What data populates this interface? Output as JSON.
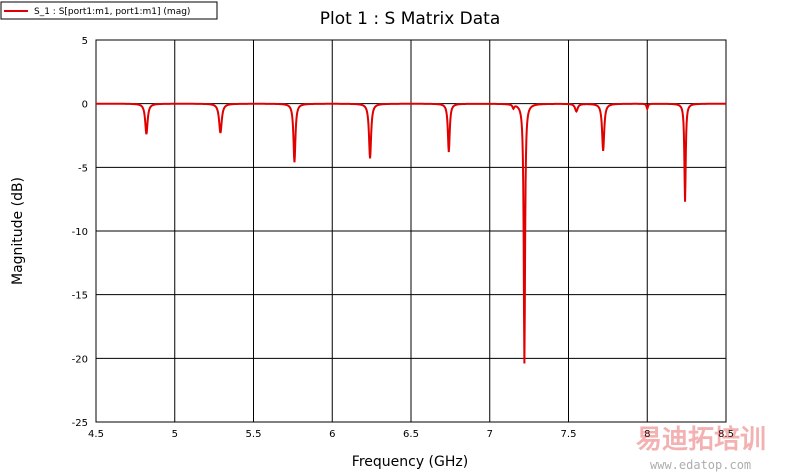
{
  "chart_data": {
    "type": "line",
    "title": "Plot 1 : S Matrix Data",
    "xlabel": "Frequency (GHz)",
    "ylabel": "Magnitude (dB)",
    "xlim": [
      4.5,
      8.5
    ],
    "ylim": [
      -25,
      5
    ],
    "x_ticks": [
      4.5,
      5,
      5.5,
      6,
      6.5,
      7,
      7.5,
      8,
      8.5
    ],
    "x_tick_labels": [
      "4.5",
      "5",
      "5.5",
      "6",
      "6.5",
      "7",
      "7.5",
      "8",
      "8.5"
    ],
    "y_ticks": [
      5,
      0,
      -5,
      -10,
      -15,
      -20,
      -25
    ],
    "y_tick_labels": [
      "5",
      "0",
      "-5",
      "-10",
      "-15",
      "-20",
      "-25"
    ],
    "grid": true,
    "legend_position": "top-left",
    "series": [
      {
        "name": "S_1 : S[port1:m1, port1:m1] (mag)",
        "color": "#e00000",
        "baseline": 0,
        "dips": [
          {
            "x": 4.82,
            "y": -2.4,
            "w": 0.018
          },
          {
            "x": 5.29,
            "y": -2.3,
            "w": 0.02
          },
          {
            "x": 5.76,
            "y": -4.6,
            "w": 0.015
          },
          {
            "x": 6.24,
            "y": -4.3,
            "w": 0.016
          },
          {
            "x": 6.74,
            "y": -3.8,
            "w": 0.014
          },
          {
            "x": 7.15,
            "y": -0.3,
            "w": 0.012
          },
          {
            "x": 7.22,
            "y": -20.4,
            "w": 0.01
          },
          {
            "x": 7.55,
            "y": -0.6,
            "w": 0.02
          },
          {
            "x": 7.72,
            "y": -3.7,
            "w": 0.016
          },
          {
            "x": 8.0,
            "y": -0.4,
            "w": 0.01
          },
          {
            "x": 8.24,
            "y": -7.7,
            "w": 0.01
          }
        ]
      }
    ]
  },
  "watermark": {
    "logo_text": "易迪拓培训",
    "url": "www.edatop.com"
  }
}
